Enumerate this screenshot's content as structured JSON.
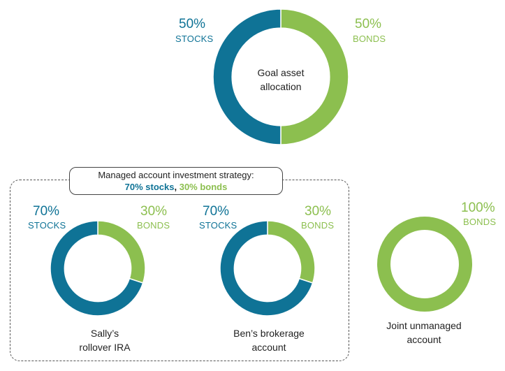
{
  "colors": {
    "stocks": "#0f7396",
    "bonds": "#8cbf4f",
    "text": "#222222"
  },
  "goal": {
    "center_label_1": "Goal asset",
    "center_label_2": "allocation",
    "stocks_pct": "50%",
    "stocks_label": "STOCKS",
    "bonds_pct": "50%",
    "bonds_label": "BONDS"
  },
  "strategy": {
    "title": "Managed account investment strategy:",
    "stocks_text": "70% stocks",
    "sep": ",",
    "bonds_text": "30% bonds"
  },
  "accounts": [
    {
      "caption_1": "Sally’s",
      "caption_2": "rollover IRA",
      "stocks_pct": "70%",
      "stocks_label": "STOCKS",
      "bonds_pct": "30%",
      "bonds_label": "BONDS"
    },
    {
      "caption_1": "Ben’s brokerage",
      "caption_2": "account",
      "stocks_pct": "70%",
      "stocks_label": "STOCKS",
      "bonds_pct": "30%",
      "bonds_label": "BONDS"
    },
    {
      "caption_1": "Joint unmanaged",
      "caption_2": "account",
      "bonds_pct": "100%",
      "bonds_label": "BONDS"
    }
  ],
  "chart_data": [
    {
      "type": "pie",
      "name": "goal",
      "categories": [
        "STOCKS",
        "BONDS"
      ],
      "values": [
        50,
        50
      ]
    },
    {
      "type": "pie",
      "name": "sally",
      "categories": [
        "STOCKS",
        "BONDS"
      ],
      "values": [
        70,
        30
      ]
    },
    {
      "type": "pie",
      "name": "ben",
      "categories": [
        "STOCKS",
        "BONDS"
      ],
      "values": [
        70,
        30
      ]
    },
    {
      "type": "pie",
      "name": "joint",
      "categories": [
        "STOCKS",
        "BONDS"
      ],
      "values": [
        0,
        100
      ]
    }
  ]
}
